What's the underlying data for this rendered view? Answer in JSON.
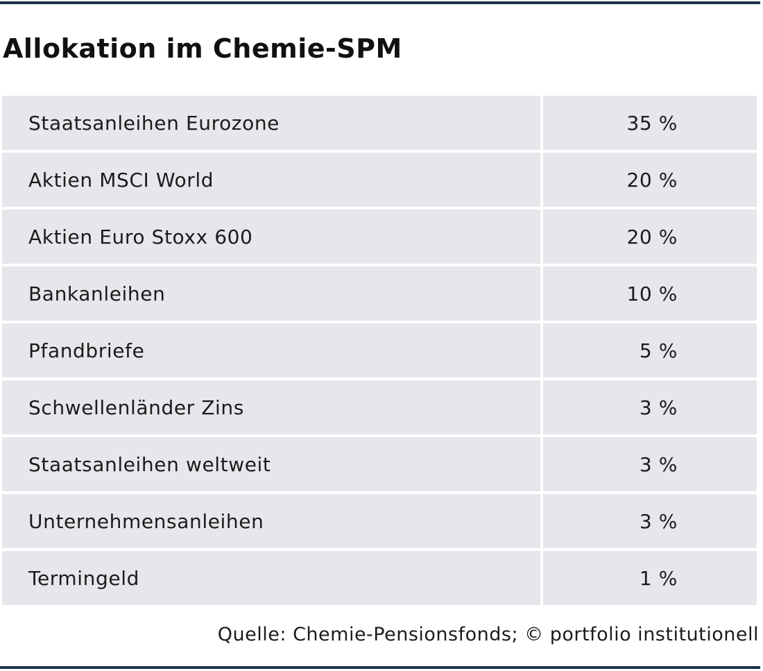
{
  "title": "Allokation im Chemie-SPM",
  "rows": [
    {
      "label": "Staatsanleihen Eurozone",
      "value": "35 %"
    },
    {
      "label": "Aktien MSCI World",
      "value": "20 %"
    },
    {
      "label": "Aktien Euro Stoxx 600",
      "value": "20 %"
    },
    {
      "label": "Bankanleihen",
      "value": "10 %"
    },
    {
      "label": "Pfandbriefe",
      "value": "5 %"
    },
    {
      "label": "Schwellenländer Zins",
      "value": "3 %"
    },
    {
      "label": "Staatsanleihen weltweit",
      "value": "3 %"
    },
    {
      "label": "Unternehmensanleihen",
      "value": "3 %"
    },
    {
      "label": "Termingeld",
      "value": "1 %"
    }
  ],
  "source": "Quelle: Chemie-Pensionsfonds; © portfolio institutionell",
  "colors": {
    "rule": "#1f3147",
    "row_background": "#e6e6eb",
    "text": "#1b1b1b"
  },
  "chart_data": {
    "type": "table",
    "title": "Allokation im Chemie-SPM",
    "categories": [
      "Staatsanleihen Eurozone",
      "Aktien MSCI World",
      "Aktien Euro Stoxx 600",
      "Bankanleihen",
      "Pfandbriefe",
      "Schwellenländer Zins",
      "Staatsanleihen weltweit",
      "Unternehmensanleihen",
      "Termingeld"
    ],
    "values": [
      35,
      20,
      20,
      10,
      5,
      3,
      3,
      3,
      1
    ],
    "unit": "%"
  }
}
